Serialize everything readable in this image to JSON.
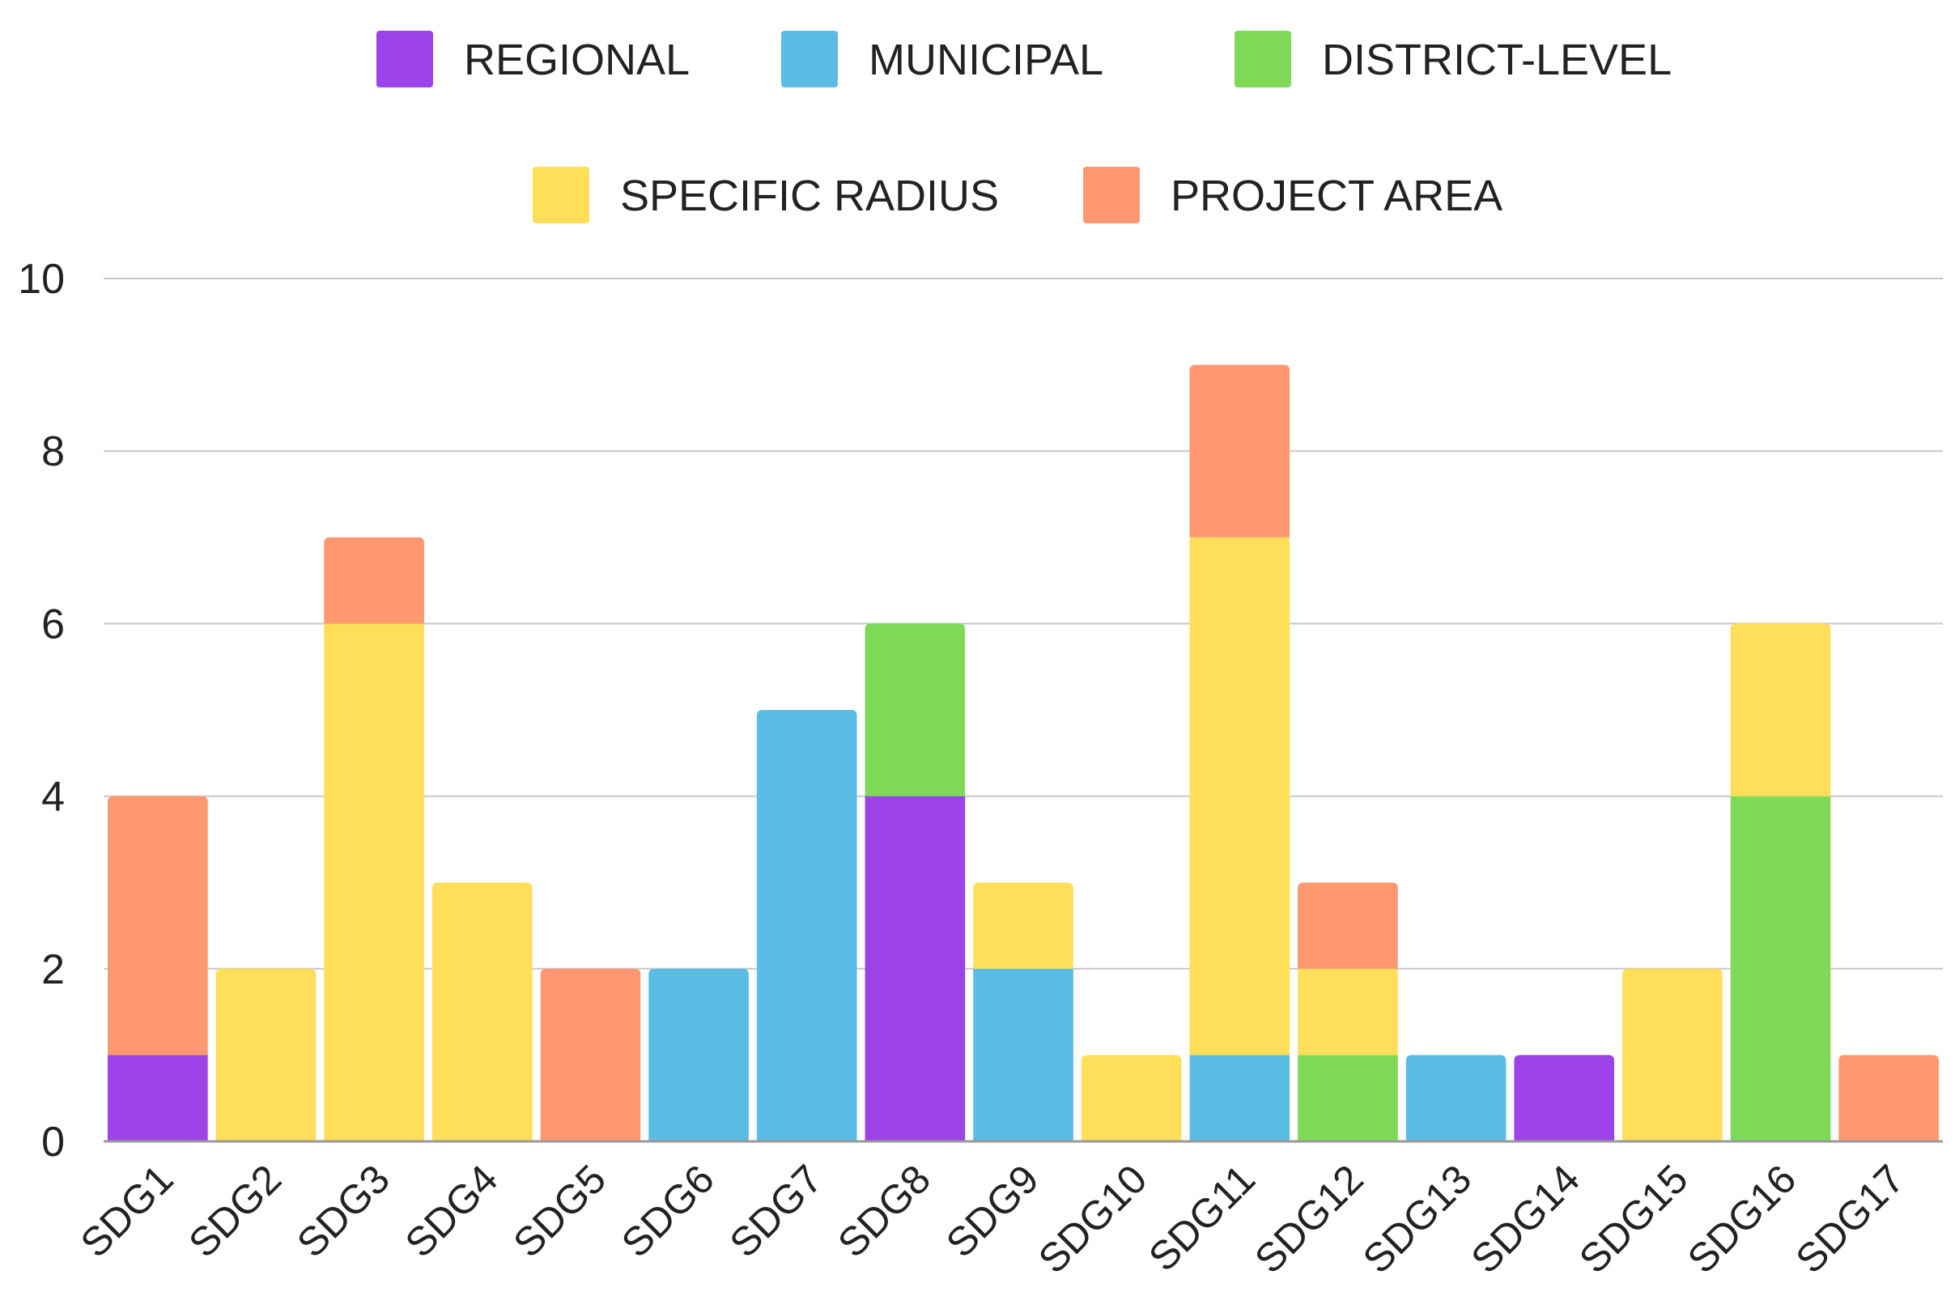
{
  "chart_data": {
    "type": "bar",
    "stacked": true,
    "title": "",
    "xlabel": "",
    "ylabel": "",
    "ylim": [
      0,
      10
    ],
    "yticks": [
      0,
      2,
      4,
      6,
      8,
      10
    ],
    "grid": true,
    "legend_position": "top",
    "categories": [
      "SDG1",
      "SDG2",
      "SDG3",
      "SDG4",
      "SDG5",
      "SDG6",
      "SDG7",
      "SDG8",
      "SDG9",
      "SDG10",
      "SDG11",
      "SDG12",
      "SDG13",
      "SDG14",
      "SDG15",
      "SDG16",
      "SDG17"
    ],
    "series": [
      {
        "name": "REGIONAL",
        "color": "#9b42e8",
        "values": [
          1,
          0,
          0,
          0,
          0,
          0,
          0,
          4,
          0,
          0,
          0,
          0,
          0,
          1,
          0,
          0,
          0
        ]
      },
      {
        "name": "MUNICIPAL",
        "color": "#5bbde4",
        "values": [
          0,
          0,
          0,
          0,
          0,
          2,
          5,
          0,
          2,
          0,
          1,
          0,
          1,
          0,
          0,
          0,
          0
        ]
      },
      {
        "name": "DISTRICT-LEVEL",
        "color": "#7ed957",
        "values": [
          0,
          0,
          0,
          0,
          0,
          0,
          0,
          2,
          0,
          0,
          0,
          1,
          0,
          0,
          0,
          4,
          0
        ]
      },
      {
        "name": "SPECIFIC RADIUS",
        "color": "#ffde59",
        "values": [
          0,
          2,
          6,
          3,
          0,
          0,
          0,
          0,
          1,
          1,
          6,
          1,
          0,
          0,
          2,
          2,
          0
        ]
      },
      {
        "name": "PROJECT AREA",
        "color": "#ff9770",
        "values": [
          3,
          0,
          1,
          0,
          2,
          0,
          0,
          0,
          0,
          0,
          2,
          1,
          0,
          0,
          0,
          0,
          1
        ]
      }
    ]
  }
}
